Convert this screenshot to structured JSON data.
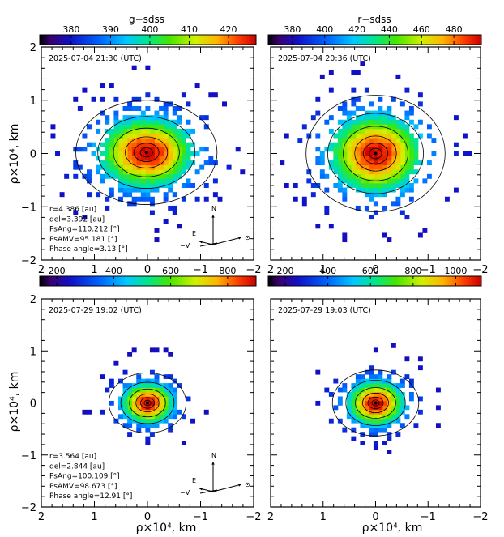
{
  "figure": {
    "filter_titles": [
      "g−sdss",
      "r−sdss"
    ],
    "y_axis_label": "ρ×10⁴, km",
    "x_axis_label": "ρ×10⁴, km"
  },
  "chart_data": [
    {
      "type": "heatmap",
      "title": "g−sdss",
      "timestamp": "2025-07-04 21:30 (UTC)",
      "colorbar": {
        "min": 372,
        "max": 427,
        "ticks": [
          380,
          390,
          400,
          410,
          420
        ]
      },
      "xlim": [
        2,
        -2
      ],
      "ylim": [
        -2,
        2
      ],
      "xticks": [
        2,
        1,
        0,
        -1,
        -2
      ],
      "yticks": [
        2,
        1,
        0,
        -1,
        -2
      ],
      "grid": false,
      "info": [
        "r=4.386 [au]",
        "del=3.392 [au]",
        "PsAng=110.212 [°]",
        "PsAMV=95.181 [°]",
        "Phase angle=3.13 [°]"
      ],
      "compass": {
        "north": "N",
        "east": "E",
        "velocity": "−V",
        "sun": "⊙"
      }
    },
    {
      "type": "heatmap",
      "title": "r−sdss",
      "timestamp": "2025-07-04 20:36 (UTC)",
      "colorbar": {
        "min": 365,
        "max": 497,
        "ticks": [
          380,
          400,
          420,
          440,
          460,
          480
        ]
      },
      "xlim": [
        2,
        -2
      ],
      "ylim": [
        -2,
        2
      ],
      "xticks": [
        2,
        1,
        0,
        -1,
        -2
      ],
      "yticks": [],
      "grid": false
    },
    {
      "type": "heatmap",
      "title": "",
      "timestamp": "2025-07-29 19:02 (UTC)",
      "colorbar": {
        "min": 140,
        "max": 900,
        "ticks": [
          200,
          400,
          600,
          800
        ]
      },
      "xlim": [
        2,
        -2
      ],
      "ylim": [
        -2,
        2
      ],
      "xticks": [
        2,
        1,
        0,
        -1,
        -2
      ],
      "yticks": [
        2,
        1,
        0,
        -1,
        -2
      ],
      "grid": false,
      "info": [
        "r=3.564 [au]",
        "del=2.844 [au]",
        "PsAng=100.109 [°]",
        "PsAMV=98.673 [°]",
        "Phase angle=12.91 [°]"
      ],
      "compass": {
        "north": "N",
        "east": "E",
        "velocity": "−V",
        "sun": "⊙"
      }
    },
    {
      "type": "heatmap",
      "title": "",
      "timestamp": "2025-07-29 19:03 (UTC)",
      "colorbar": {
        "min": 120,
        "max": 1120,
        "ticks": [
          200,
          400,
          600,
          800,
          1000
        ]
      },
      "xlim": [
        2,
        -2
      ],
      "ylim": [
        -2,
        2
      ],
      "xticks": [
        2,
        1,
        0,
        -1,
        -2
      ],
      "yticks": [],
      "grid": false
    }
  ]
}
